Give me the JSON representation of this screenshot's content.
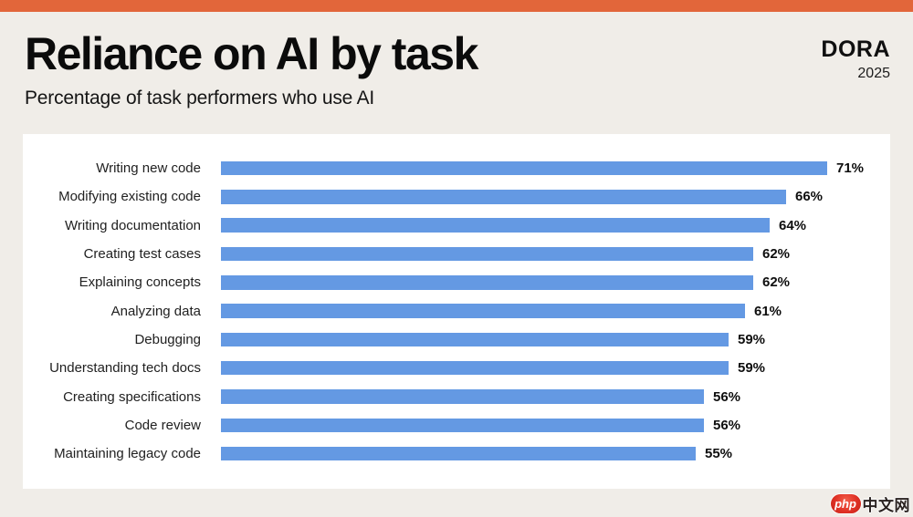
{
  "page": {
    "background": "#F0EDE8",
    "accent_bar_color": "#E2663A",
    "card_color": "#FFFFFF"
  },
  "header": {
    "title": "Reliance on AI by task",
    "subtitle": "Percentage of task performers who use AI",
    "brand": "DORA",
    "year": "2025"
  },
  "chart_data": {
    "type": "bar",
    "orientation": "horizontal",
    "title": "Reliance on AI by task",
    "subtitle": "Percentage of task performers who use AI",
    "categories": [
      "Writing new code",
      "Modifying existing code",
      "Writing documentation",
      "Creating test cases",
      "Explaining concepts",
      "Analyzing data",
      "Debugging",
      "Understanding tech docs",
      "Creating specifications",
      "Code review",
      "Maintaining legacy code"
    ],
    "values": [
      71,
      66,
      64,
      62,
      62,
      61,
      59,
      59,
      56,
      56,
      55
    ],
    "value_suffix": "%",
    "bar_color": "#6499E3",
    "xlim": [
      0,
      75
    ],
    "grid": false,
    "legend": false,
    "value_labels": "end-of-bar"
  },
  "watermark": {
    "badge": "php",
    "text": "中文网",
    "badge_color": "#E03125"
  }
}
